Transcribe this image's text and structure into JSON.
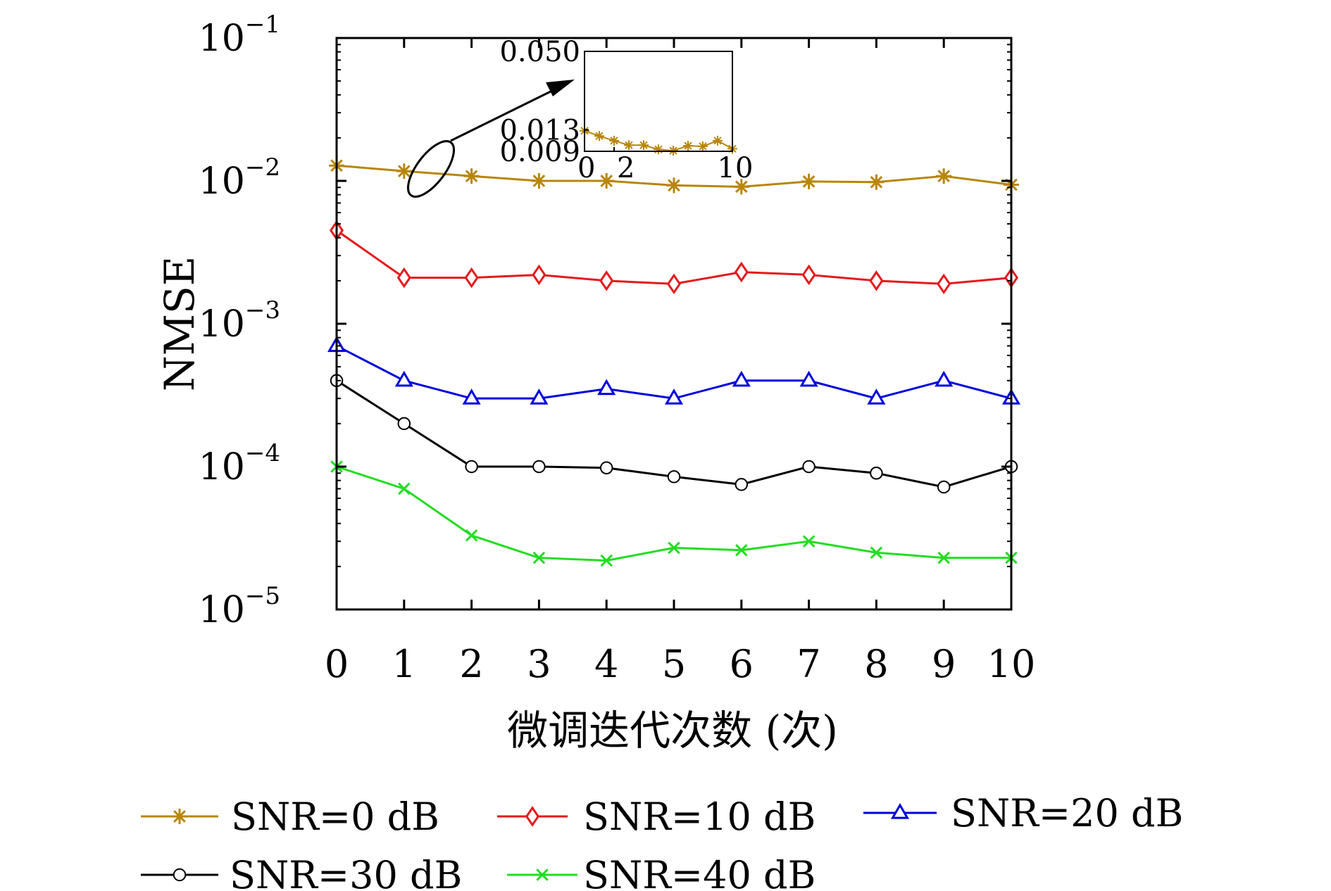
{
  "chart_data": {
    "type": "line",
    "xlabel": "微调迭代次数 (次)",
    "ylabel": "NMSE",
    "yscale": "log",
    "xlim": [
      0,
      10
    ],
    "ylim": [
      1e-05,
      0.1
    ],
    "x_ticks": [
      "0",
      "1",
      "2",
      "3",
      "4",
      "5",
      "6",
      "7",
      "8",
      "9",
      "10"
    ],
    "y_ticks": [
      {
        "base": "10",
        "exp": "−1",
        "value": 0.1
      },
      {
        "base": "10",
        "exp": "−2",
        "value": 0.01
      },
      {
        "base": "10",
        "exp": "−3",
        "value": 0.001
      },
      {
        "base": "10",
        "exp": "−4",
        "value": 0.0001
      },
      {
        "base": "10",
        "exp": "−5",
        "value": 1e-05
      }
    ],
    "grid": false,
    "legend_position": "bottom",
    "x": [
      0,
      1,
      2,
      3,
      4,
      5,
      6,
      7,
      8,
      9,
      10
    ],
    "series": [
      {
        "name": "SNR=0 dB",
        "color": "#b8860b",
        "marker": "asterisk",
        "values": [
          0.0128,
          0.0117,
          0.0108,
          0.01,
          0.01,
          0.0093,
          0.0091,
          0.0099,
          0.0098,
          0.0108,
          0.0094
        ]
      },
      {
        "name": "SNR=10 dB",
        "color": "#e41a1c",
        "marker": "diamond",
        "values": [
          0.0045,
          0.0021,
          0.0021,
          0.0022,
          0.002,
          0.0019,
          0.0023,
          0.0022,
          0.002,
          0.0019,
          0.0021
        ]
      },
      {
        "name": "SNR=20 dB",
        "color": "#0000dd",
        "marker": "triangle",
        "values": [
          0.0007,
          0.0004,
          0.0003,
          0.0003,
          0.00035,
          0.0003,
          0.0004,
          0.0004,
          0.0003,
          0.0004,
          0.0003
        ]
      },
      {
        "name": "SNR=30 dB",
        "color": "#000000",
        "marker": "circle",
        "values": [
          0.0004,
          0.0002,
          0.0001,
          0.0001,
          9.8e-05,
          8.5e-05,
          7.5e-05,
          0.0001,
          9e-05,
          7.2e-05,
          0.0001
        ]
      },
      {
        "name": "SNR=40 dB",
        "color": "#22dd22",
        "marker": "x",
        "values": [
          0.0001,
          7e-05,
          3.3e-05,
          2.3e-05,
          2.2e-05,
          2.7e-05,
          2.6e-05,
          3e-05,
          2.5e-05,
          2.3e-05,
          2.3e-05
        ]
      }
    ],
    "inset": {
      "series": "SNR=0 dB",
      "xlim": [
        0,
        10
      ],
      "ylim": [
        0.009,
        0.05
      ],
      "y_ticks": [
        "0.050",
        "0.013",
        "0.009"
      ],
      "x_ticks": [
        "0",
        "2",
        "10"
      ],
      "x": [
        0,
        1,
        2,
        3,
        4,
        5,
        6,
        7,
        8,
        9,
        10
      ],
      "values": [
        0.0128,
        0.0117,
        0.0108,
        0.01,
        0.01,
        0.0093,
        0.0091,
        0.0099,
        0.0098,
        0.0108,
        0.0094
      ]
    }
  }
}
